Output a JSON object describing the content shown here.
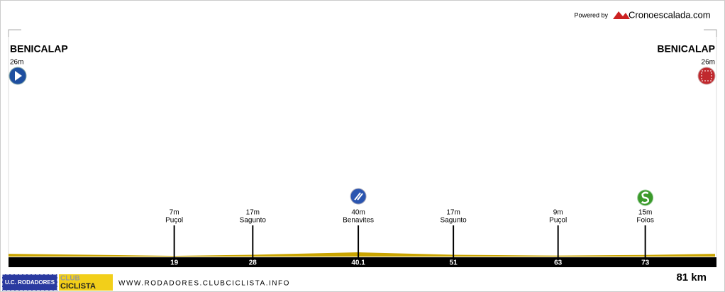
{
  "chart_data": {
    "type": "profile",
    "powered_by": "Powered by",
    "brand": "Cronoescalada.com",
    "xlim": [
      0,
      81
    ],
    "ylim": [
      0,
      300
    ],
    "start": {
      "name": "BENICALAP",
      "altitude": {
        "value": 26,
        "label": "26m"
      }
    },
    "finish": {
      "name": "BENICALAP",
      "altitude": {
        "value": 26,
        "label": "26m"
      }
    },
    "waypoints": [
      {
        "name": "Puçol",
        "km": 19,
        "altitude": {
          "value": 7,
          "label": "7m"
        }
      },
      {
        "name": "Sagunto",
        "km": 28,
        "altitude": {
          "value": 17,
          "label": "17m"
        }
      },
      {
        "name": "Benavites",
        "km": 40.1,
        "altitude": {
          "value": 40,
          "label": "40m"
        },
        "icon": "turn"
      },
      {
        "name": "Sagunto",
        "km": 51,
        "altitude": {
          "value": 17,
          "label": "17m"
        }
      },
      {
        "name": "Puçol",
        "km": 63,
        "altitude": {
          "value": 9,
          "label": "9m"
        }
      },
      {
        "name": "Foios",
        "km": 73,
        "altitude": {
          "value": 15,
          "label": "15m"
        },
        "icon": "sprint"
      }
    ],
    "total": {
      "value": 81,
      "label": "81 km"
    },
    "color": "#c9a400",
    "footer": {
      "logo1": "U.C. RODADORES",
      "logo2a": "CLUB",
      "logo2b": "CICLISTA",
      "url": "WWW.RODADORES.CLUBCICLISTA.INFO"
    }
  }
}
